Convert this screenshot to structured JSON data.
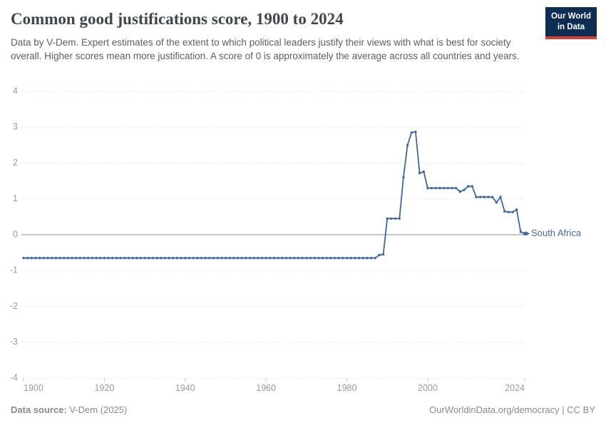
{
  "header": {
    "title": "Common good justifications score, 1900 to 2024",
    "subtitle": "Data by V-Dem. Expert estimates of the extent to which political leaders justify their views with what is best for society overall. Higher scores mean more justification. A score of 0 is approximately the average across all countries and years.",
    "logo_line1": "Our World",
    "logo_line2": "in Data",
    "logo_bg": "#0d2d52",
    "logo_accent": "#dc3e32"
  },
  "footer": {
    "source_label": "Data source:",
    "source_value": "V-Dem (2025)",
    "credit": "OurWorldinData.org/democracy | CC BY"
  },
  "chart_data": {
    "type": "line",
    "title": "Common good justifications score, 1900 to 2024",
    "xlabel": "",
    "ylabel": "",
    "xlim": [
      1900,
      2024
    ],
    "ylim": [
      -4,
      4
    ],
    "x_ticks": [
      1900,
      1920,
      1940,
      1960,
      1980,
      2000,
      2024
    ],
    "y_ticks": [
      4,
      3,
      2,
      1,
      0,
      -1,
      -2,
      -3,
      -4
    ],
    "grid": "horizontal-dashed",
    "legend_position": "end-of-line",
    "line_color": "#4166a5",
    "entity_label_color": "#4a69a3",
    "grid_color": "#e0e0e0",
    "zero_line_color": "#a3a3a3",
    "tick_label_color": "#9a9a9a",
    "series": [
      {
        "name": "South Africa",
        "start_year": 1900,
        "values": [
          -0.65,
          -0.65,
          -0.65,
          -0.65,
          -0.65,
          -0.65,
          -0.65,
          -0.65,
          -0.65,
          -0.65,
          -0.65,
          -0.65,
          -0.65,
          -0.65,
          -0.65,
          -0.65,
          -0.65,
          -0.65,
          -0.65,
          -0.65,
          -0.65,
          -0.65,
          -0.65,
          -0.65,
          -0.65,
          -0.65,
          -0.65,
          -0.65,
          -0.65,
          -0.65,
          -0.65,
          -0.65,
          -0.65,
          -0.65,
          -0.65,
          -0.65,
          -0.65,
          -0.65,
          -0.65,
          -0.65,
          -0.65,
          -0.65,
          -0.65,
          -0.65,
          -0.65,
          -0.65,
          -0.65,
          -0.65,
          -0.65,
          -0.65,
          -0.65,
          -0.65,
          -0.65,
          -0.65,
          -0.65,
          -0.65,
          -0.65,
          -0.65,
          -0.65,
          -0.65,
          -0.65,
          -0.65,
          -0.65,
          -0.65,
          -0.65,
          -0.65,
          -0.65,
          -0.65,
          -0.65,
          -0.65,
          -0.65,
          -0.65,
          -0.65,
          -0.65,
          -0.65,
          -0.65,
          -0.65,
          -0.65,
          -0.65,
          -0.65,
          -0.65,
          -0.65,
          -0.65,
          -0.65,
          -0.65,
          -0.65,
          -0.65,
          -0.65,
          -0.57,
          -0.55,
          0.45,
          0.45,
          0.45,
          0.45,
          1.6,
          2.5,
          2.85,
          2.87,
          1.72,
          1.76,
          1.3,
          1.3,
          1.3,
          1.3,
          1.3,
          1.3,
          1.3,
          1.3,
          1.2,
          1.25,
          1.35,
          1.35,
          1.05,
          1.05,
          1.05,
          1.05,
          1.05,
          0.9,
          1.05,
          0.65,
          0.63,
          0.63,
          0.7,
          0.08,
          0.03
        ]
      }
    ]
  }
}
